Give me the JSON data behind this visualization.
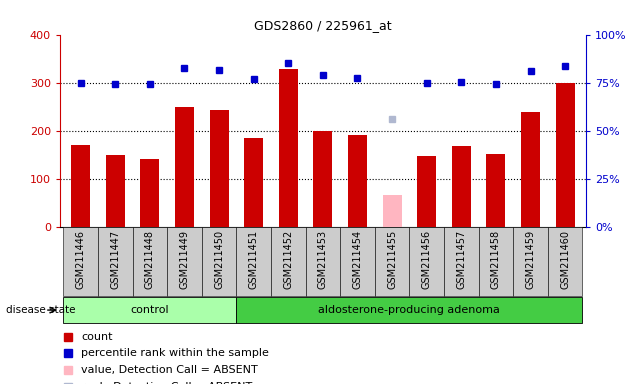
{
  "title": "GDS2860 / 225961_at",
  "samples": [
    "GSM211446",
    "GSM211447",
    "GSM211448",
    "GSM211449",
    "GSM211450",
    "GSM211451",
    "GSM211452",
    "GSM211453",
    "GSM211454",
    "GSM211455",
    "GSM211456",
    "GSM211457",
    "GSM211458",
    "GSM211459",
    "GSM211460"
  ],
  "bar_values": [
    170,
    150,
    140,
    250,
    242,
    185,
    328,
    200,
    190,
    65,
    148,
    168,
    152,
    238,
    300
  ],
  "bar_colors": [
    "#cc0000",
    "#cc0000",
    "#cc0000",
    "#cc0000",
    "#cc0000",
    "#cc0000",
    "#cc0000",
    "#cc0000",
    "#cc0000",
    "#ffb6c1",
    "#cc0000",
    "#cc0000",
    "#cc0000",
    "#cc0000",
    "#cc0000"
  ],
  "dot_values_left": [
    300,
    297,
    297,
    330,
    327,
    308,
    340,
    315,
    310,
    225,
    300,
    302,
    298,
    325,
    335
  ],
  "dot_colors": [
    "#0000cc",
    "#0000cc",
    "#0000cc",
    "#0000cc",
    "#0000cc",
    "#0000cc",
    "#0000cc",
    "#0000cc",
    "#0000cc",
    "#b0b8d0",
    "#0000cc",
    "#0000cc",
    "#0000cc",
    "#0000cc",
    "#0000cc"
  ],
  "ylim_left": [
    0,
    400
  ],
  "ylim_right": [
    0,
    100
  ],
  "yticks_left": [
    0,
    100,
    200,
    300,
    400
  ],
  "yticks_right": [
    0,
    25,
    50,
    75,
    100
  ],
  "ytick_labels_right": [
    "0%",
    "25%",
    "50%",
    "75%",
    "100%"
  ],
  "grid_lines": [
    100,
    200,
    300
  ],
  "left_axis_color": "#cc0000",
  "right_axis_color": "#0000cc",
  "control_samples": 5,
  "control_label": "control",
  "disease_label": "aldosterone-producing adenoma",
  "disease_state_label": "disease state",
  "legend_items": [
    {
      "label": "count",
      "color": "#cc0000"
    },
    {
      "label": "percentile rank within the sample",
      "color": "#0000cc"
    },
    {
      "label": "value, Detection Call = ABSENT",
      "color": "#ffb6c1"
    },
    {
      "label": "rank, Detection Call = ABSENT",
      "color": "#b0b8d0"
    }
  ],
  "control_bg": "#aaffaa",
  "adenoma_bg": "#44cc44",
  "label_bg_gray": "#cccccc"
}
